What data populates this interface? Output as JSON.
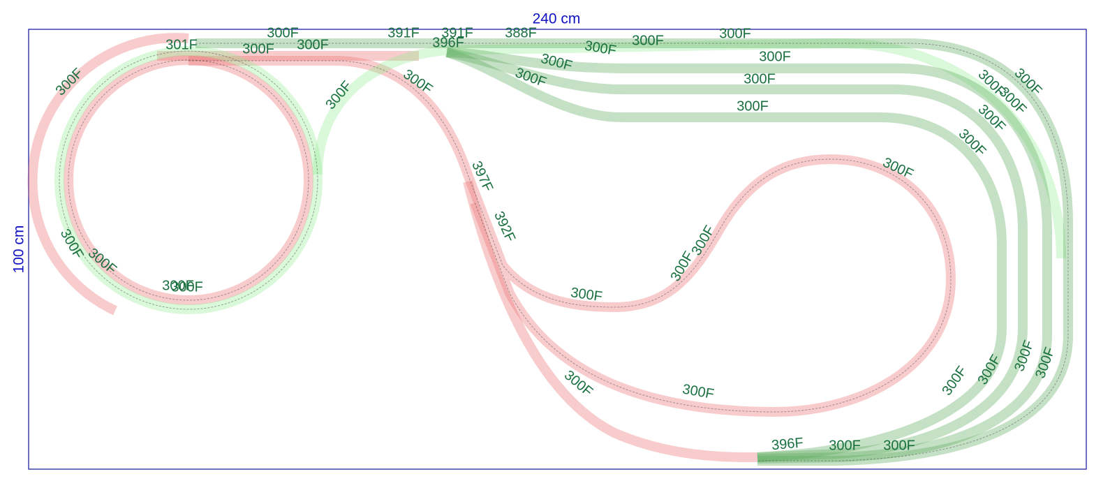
{
  "dimensions": {
    "width": "240 cm",
    "height": "100 cm"
  },
  "labels": [
    "300F",
    "301F",
    "300F",
    "300F",
    "300F",
    "391F",
    "391F",
    "396F",
    "388F",
    "300F",
    "300F",
    "300F",
    "300F",
    "300F",
    "300F",
    "300F",
    "300F",
    "300F",
    "300F",
    "300F",
    "300F",
    "300F",
    "300F",
    "300F",
    "300F",
    "397F",
    "392F",
    "300F",
    "300F",
    "300F",
    "300F",
    "300F",
    "300F",
    "300F",
    "300F",
    "300F",
    "300F",
    "300F",
    "300F",
    "300F",
    "396F",
    "300F",
    "300F"
  ]
}
